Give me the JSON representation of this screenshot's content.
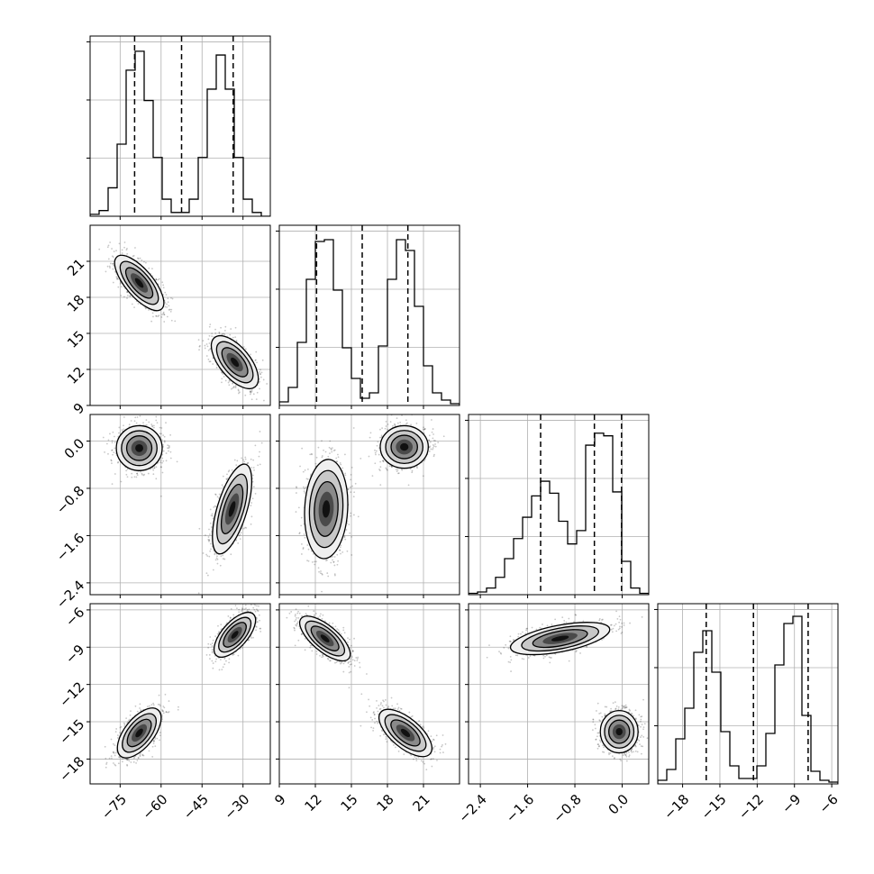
{
  "chart_data": {
    "type": "corner",
    "title": "",
    "grid": true,
    "style": {
      "frame_color": "#000000",
      "grid_color": "#b0b0b0",
      "hist_color": "#000000",
      "point_color": "#000000",
      "fill_colors": [
        "#efefef",
        "#c8c8c8",
        "#8a8a8a",
        "#4a4a4a",
        "#111111"
      ]
    },
    "parameters": [
      {
        "range": [
          -86,
          -20
        ],
        "ticks": [
          -75,
          -60,
          -45,
          -30
        ],
        "tick_labels": [
          "−75",
          "−60",
          "−45",
          "−30"
        ]
      },
      {
        "range": [
          9,
          24
        ],
        "ticks": [
          9,
          12,
          15,
          18,
          21
        ],
        "tick_labels": [
          "9",
          "12",
          "15",
          "18",
          "21"
        ]
      },
      {
        "range": [
          -2.6,
          0.45
        ],
        "ticks": [
          -2.4,
          -1.6,
          -0.8,
          0.0
        ],
        "tick_labels": [
          "−2.4",
          "−1.6",
          "−0.8",
          "0.0"
        ]
      },
      {
        "range": [
          -20,
          -5.5
        ],
        "ticks": [
          -18,
          -15,
          -12,
          -9,
          -6
        ],
        "tick_labels": [
          "−18",
          "−15",
          "−12",
          "−9",
          "−6"
        ]
      }
    ],
    "histograms": [
      {
        "param": 0,
        "bins": [
          -86,
          -82.7,
          -79.4,
          -76.1,
          -72.8,
          -69.5,
          -66.2,
          -62.9,
          -59.6,
          -56.3,
          -53,
          -49.7,
          -46.4,
          -43.1,
          -39.8,
          -36.5,
          -33.2,
          -29.9,
          -26.6,
          -23.3,
          -20
        ],
        "counts": [
          1,
          3,
          15,
          38,
          77,
          87,
          61,
          31,
          9,
          2,
          2,
          9,
          31,
          67,
          85,
          67,
          31,
          9,
          2,
          0
        ],
        "quantiles": [
          -69.7,
          -52.5,
          -33.6
        ],
        "ylim": [
          0,
          95
        ]
      },
      {
        "param": 1,
        "bins": [
          9,
          9.75,
          10.5,
          11.25,
          12,
          12.75,
          13.5,
          14.25,
          15,
          15.75,
          16.5,
          17.25,
          18,
          18.75,
          19.5,
          20.25,
          21,
          21.75,
          22.5,
          23.25,
          24
        ],
        "counts": [
          2,
          10,
          35,
          70,
          91,
          92,
          64,
          32,
          15,
          4,
          7,
          33,
          70,
          92,
          86,
          55,
          22,
          7,
          3,
          1
        ],
        "quantiles": [
          12.1,
          15.9,
          19.7
        ],
        "ylim": [
          0,
          100
        ]
      },
      {
        "param": 2,
        "bins": [
          -2.6,
          -2.4475,
          -2.295,
          -2.1425,
          -1.99,
          -1.8375,
          -1.685,
          -1.5325,
          -1.38,
          -1.2275,
          -1.075,
          -0.9225,
          -0.77,
          -0.6175,
          -0.465,
          -0.3125,
          -0.16,
          -0.0075,
          0.145,
          0.2975,
          0.45
        ],
        "counts": [
          1,
          2,
          5,
          13,
          27,
          42,
          58,
          74,
          85,
          76,
          55,
          38,
          48,
          112,
          121,
          119,
          77,
          25,
          5,
          1
        ],
        "quantiles": [
          -1.38,
          -0.47,
          -0.01
        ],
        "ylim": [
          0,
          135
        ]
      },
      {
        "param": 3,
        "bins": [
          -20,
          -19.275,
          -18.55,
          -17.825,
          -17.1,
          -16.375,
          -15.65,
          -14.925,
          -14.2,
          -13.475,
          -12.75,
          -12.025,
          -11.3,
          -10.575,
          -9.85,
          -9.125,
          -8.4,
          -7.675,
          -6.95,
          -6.225,
          -5.5
        ],
        "counts": [
          2,
          8,
          25,
          42,
          73,
          85,
          62,
          29,
          10,
          3,
          3,
          10,
          28,
          66,
          89,
          93,
          38,
          7,
          2,
          1
        ],
        "quantiles": [
          -16.1,
          -12.3,
          -7.9
        ],
        "ylim": [
          0,
          100
        ]
      }
    ],
    "pairs": [
      {
        "x": 0,
        "y": 1,
        "modes": [
          {
            "cx": -68,
            "cy": 19.2,
            "sx": 4.5,
            "sy": 1.15,
            "rho": -0.72,
            "w": 0.5
          },
          {
            "cx": -33,
            "cy": 12.6,
            "sx": 4.3,
            "sy": 1.1,
            "rho": -0.62,
            "w": 0.5
          }
        ]
      },
      {
        "x": 0,
        "y": 2,
        "modes": [
          {
            "cx": -68,
            "cy": -0.12,
            "sx": 4.2,
            "sy": 0.19,
            "rho": 0.0,
            "w": 0.5
          },
          {
            "cx": -34,
            "cy": -1.15,
            "sx": 3.6,
            "sy": 0.38,
            "rho": 0.62,
            "w": 0.5
          }
        ]
      },
      {
        "x": 1,
        "y": 2,
        "modes": [
          {
            "cx": 19.4,
            "cy": -0.1,
            "sx": 1.0,
            "sy": 0.18,
            "rho": 0.0,
            "w": 0.5
          },
          {
            "cx": 12.9,
            "cy": -1.15,
            "sx": 0.9,
            "sy": 0.42,
            "rho": 0.1,
            "w": 0.5
          }
        ]
      },
      {
        "x": 0,
        "y": 3,
        "modes": [
          {
            "cx": -33,
            "cy": -8.0,
            "sx": 3.8,
            "sy": 0.9,
            "rho": 0.65,
            "w": 0.5
          },
          {
            "cx": -68,
            "cy": -15.9,
            "sx": 4.0,
            "sy": 1.0,
            "rho": 0.6,
            "w": 0.5
          }
        ]
      },
      {
        "x": 1,
        "y": 3,
        "modes": [
          {
            "cx": 12.8,
            "cy": -8.3,
            "sx": 1.05,
            "sy": 0.9,
            "rho": -0.7,
            "w": 0.5
          },
          {
            "cx": 19.5,
            "cy": -15.9,
            "sx": 1.1,
            "sy": 0.95,
            "rho": -0.65,
            "w": 0.5
          }
        ]
      },
      {
        "x": 2,
        "y": 3,
        "modes": [
          {
            "cx": -1.05,
            "cy": -8.3,
            "sx": 0.42,
            "sy": 0.65,
            "rho": 0.55,
            "w": 0.5
          },
          {
            "cx": -0.05,
            "cy": -15.8,
            "sx": 0.16,
            "sy": 0.85,
            "rho": 0.0,
            "w": 0.5
          }
        ]
      }
    ]
  }
}
